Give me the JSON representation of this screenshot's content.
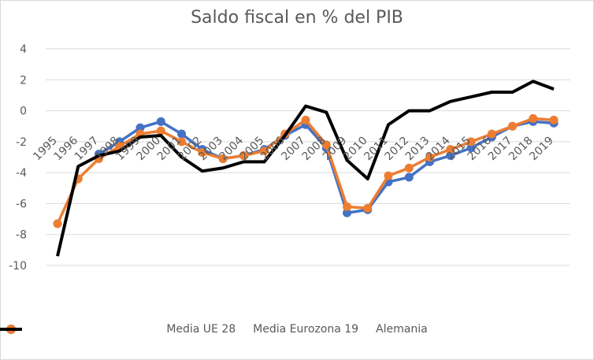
{
  "chart_data": {
    "type": "line",
    "title": "Saldo fiscal en % del PIB",
    "xlabel": "",
    "ylabel": "",
    "categories": [
      "1995",
      "1996",
      "1997",
      "1998",
      "1999",
      "2000",
      "2001",
      "2002",
      "2003",
      "2004",
      "2005",
      "2006",
      "2007",
      "2008",
      "2009",
      "2010",
      "2011",
      "2012",
      "2013",
      "2014",
      "2015",
      "2016",
      "2017",
      "2018",
      "2019"
    ],
    "ylim": [
      -10,
      4
    ],
    "yticks": [
      "4",
      "2",
      "0",
      "-2",
      "-4",
      "-6",
      "-8",
      "-10"
    ],
    "grid": true,
    "legend_position": "bottom",
    "series": [
      {
        "name": "Media UE 28",
        "color": "#4472c4",
        "marker": "circle",
        "values": [
          null,
          null,
          -2.8,
          -2.0,
          -1.1,
          -0.7,
          -1.5,
          -2.5,
          -3.1,
          -2.9,
          -2.5,
          -1.6,
          -0.9,
          -2.4,
          -6.6,
          -6.4,
          -4.6,
          -4.3,
          -3.3,
          -2.9,
          -2.4,
          -1.7,
          -1.0,
          -0.7,
          -0.8
        ]
      },
      {
        "name": "Media Eurozona 19",
        "color": "#ed7d31",
        "marker": "circle",
        "values": [
          -7.3,
          -4.4,
          -3.1,
          -2.3,
          -1.5,
          -1.3,
          -2.0,
          -2.7,
          -3.1,
          -2.9,
          -2.6,
          -1.5,
          -0.6,
          -2.2,
          -6.2,
          -6.3,
          -4.2,
          -3.7,
          -3.0,
          -2.5,
          -2.0,
          -1.5,
          -1.0,
          -0.5,
          -0.6
        ]
      },
      {
        "name": "Alemania",
        "color": "#000000",
        "marker": "none",
        "values": [
          -9.4,
          -3.6,
          -2.9,
          -2.6,
          -1.7,
          -1.6,
          -3.0,
          -3.9,
          -3.7,
          -3.3,
          -3.3,
          -1.6,
          0.3,
          -0.1,
          -3.2,
          -4.4,
          -0.9,
          0.0,
          0.0,
          0.6,
          0.9,
          1.2,
          1.2,
          1.9,
          1.4
        ]
      }
    ]
  }
}
